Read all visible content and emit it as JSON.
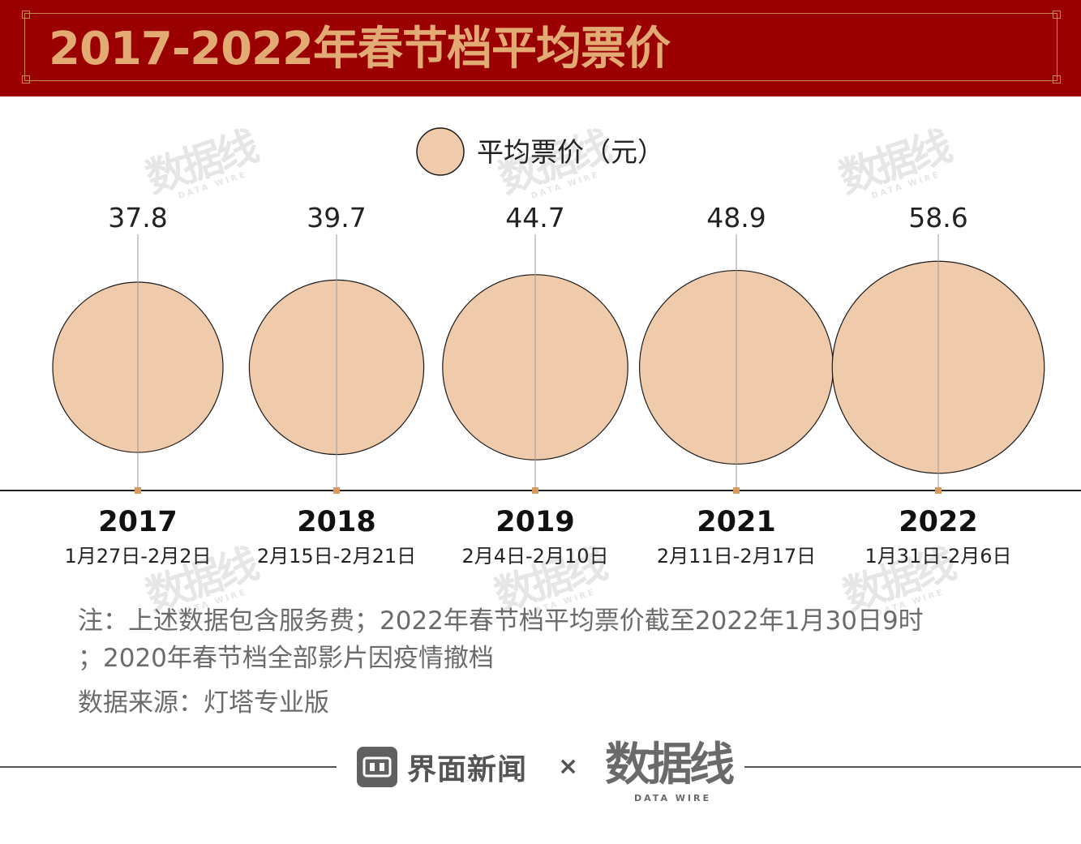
{
  "header": {
    "title": "2017-2022年春节档平均票价"
  },
  "legend": {
    "label": "平均票价（元）"
  },
  "chart_data": {
    "type": "bubble",
    "series": [
      {
        "name": "平均票价（元）",
        "values": [
          37.8,
          39.7,
          44.7,
          48.9,
          58.6
        ]
      }
    ],
    "categories": [
      "2017",
      "2018",
      "2019",
      "2021",
      "2022"
    ],
    "date_ranges": [
      "1月27日-2月2日",
      "2月15日-2月21日",
      "2月4日-2月10日",
      "2月11日-2月17日",
      "1月31日-2月6日"
    ],
    "data_labels": [
      "37.8",
      "39.7",
      "44.7",
      "48.9",
      "58.6"
    ],
    "legend_position": "top-center",
    "grid": false,
    "colors": {
      "bubble_fill": "#efcbac",
      "bubble_stroke": "#1a1a1a",
      "marker": "#d69a5c"
    }
  },
  "notes": {
    "line1": "注：上述数据包含服务费；2022年春节档平均票价截至2022年1月30日9时",
    "line2": "；2020年春节档全部影片因疫情撤档",
    "source": "数据来源：灯塔专业版"
  },
  "footer": {
    "brand_jiemian": "界面新闻",
    "separator": "×",
    "brand_datawire": "数据线",
    "brand_datawire_sub": "DATA WIRE"
  },
  "watermark": {
    "main": "数据线",
    "sub": "DATA WIRE"
  },
  "colors": {
    "header_bg": "#9a0000",
    "title_color": "#e3ab74",
    "frame_color": "#c8894f"
  }
}
